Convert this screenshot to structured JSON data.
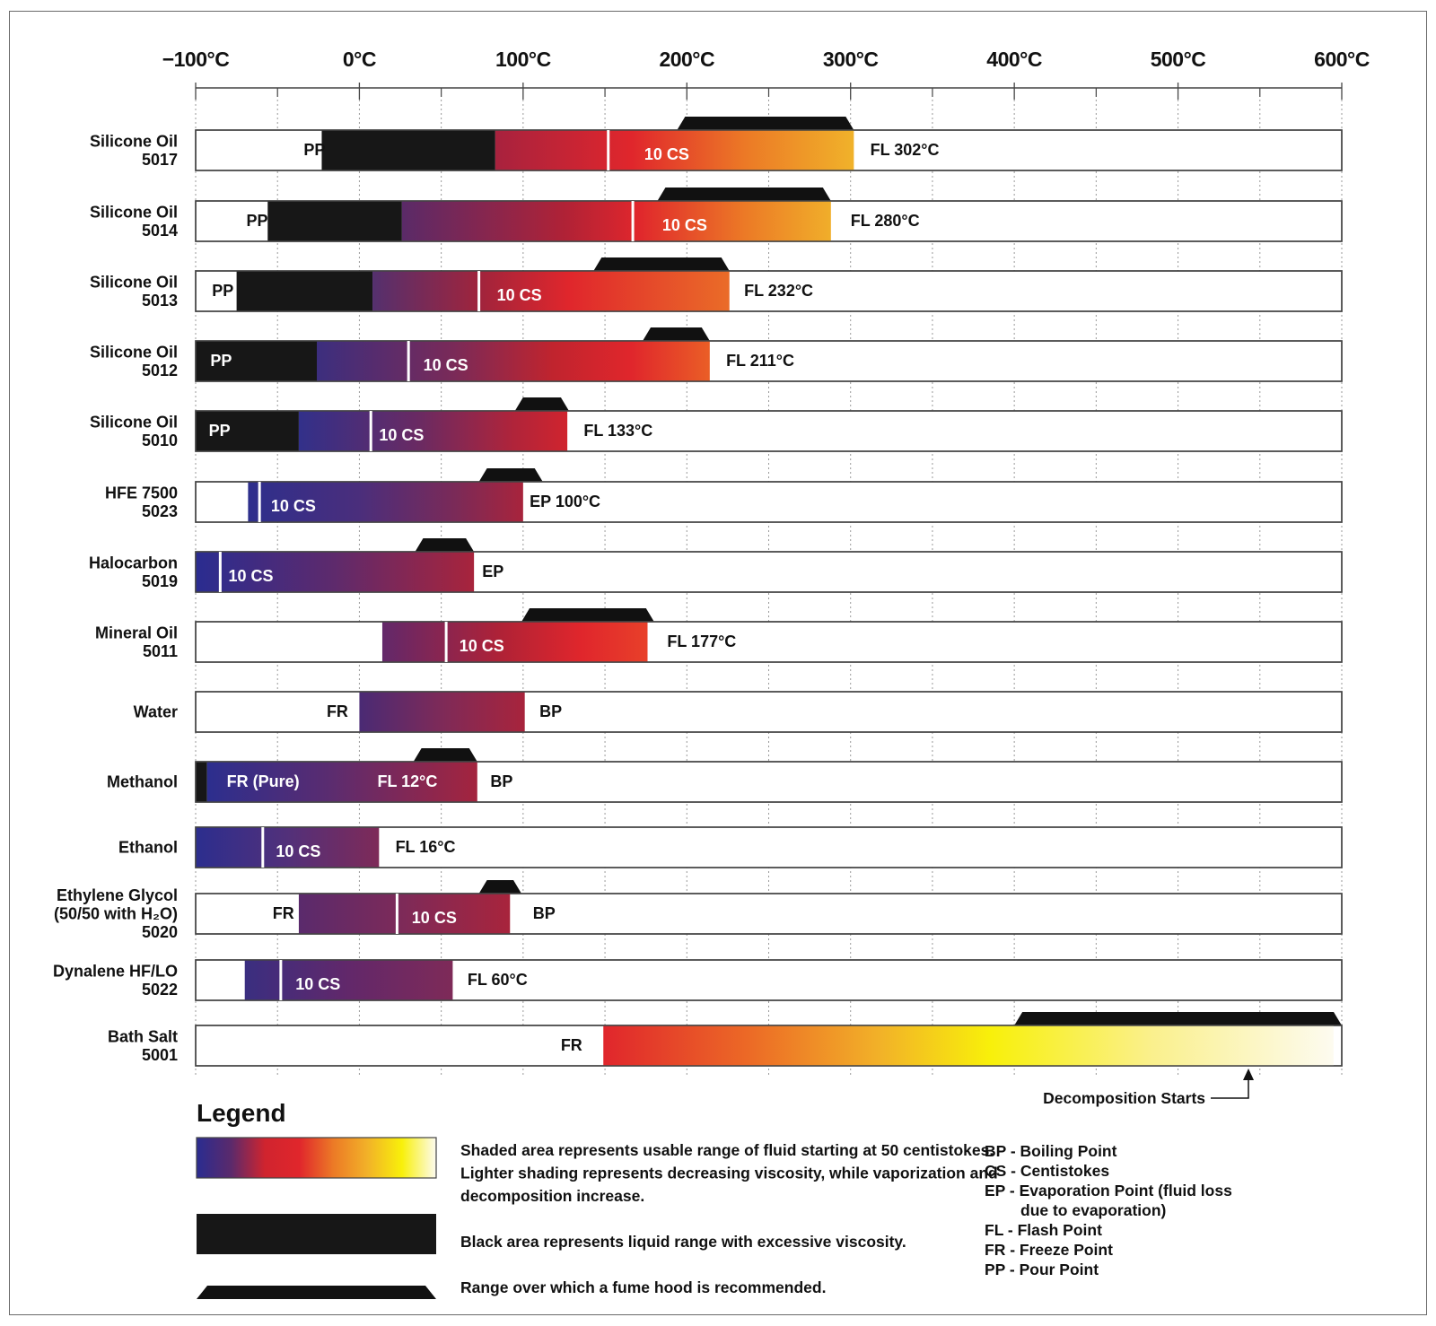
{
  "chart_data": {
    "type": "range-bar",
    "title": "",
    "xlabel": "",
    "ylabel": "",
    "xlim": [
      -100,
      600
    ],
    "x_ticks": [
      -100,
      0,
      100,
      200,
      300,
      400,
      500,
      600
    ],
    "x_tick_labels": [
      "−100°C",
      "0°C",
      "100°C",
      "200°C",
      "300°C",
      "400°C",
      "500°C",
      "600°C"
    ],
    "grid": true,
    "fluids": [
      {
        "name": "Silicone Oil 5017",
        "label_lines": [
          "Silicone Oil",
          "5017"
        ],
        "black_range": [
          -23,
          83
        ],
        "usable_range": [
          83,
          302
        ],
        "gradient": [
          [
            0,
            "#a8223e"
          ],
          [
            0.38,
            "#e0262c"
          ],
          [
            0.7,
            "#ec7a26"
          ],
          [
            1,
            "#f0b22a"
          ]
        ],
        "cs10_at": 152,
        "hood_range": [
          194,
          302
        ],
        "labels": [
          {
            "text": "PP",
            "at": -34,
            "color": "#111"
          },
          {
            "text": "10 CS",
            "at": 174,
            "color": "#fff"
          },
          {
            "text": "FL 302°C",
            "at": 312,
            "color": "#111"
          }
        ]
      },
      {
        "name": "Silicone Oil 5014",
        "label_lines": [
          "Silicone Oil",
          "5014"
        ],
        "black_range": [
          -56,
          26
        ],
        "usable_range": [
          26,
          288
        ],
        "gradient": [
          [
            0,
            "#5a2a68"
          ],
          [
            0.38,
            "#b02236"
          ],
          [
            0.55,
            "#e0262c"
          ],
          [
            0.8,
            "#ec7a26"
          ],
          [
            1,
            "#f0ae2a"
          ]
        ],
        "cs10_at": 167,
        "hood_range": [
          182,
          288
        ],
        "labels": [
          {
            "text": "PP",
            "at": -69,
            "color": "#111"
          },
          {
            "text": "10 CS",
            "at": 185,
            "color": "#fff"
          },
          {
            "text": "FL 280°C",
            "at": 300,
            "color": "#111"
          }
        ]
      },
      {
        "name": "Silicone Oil 5013",
        "label_lines": [
          "Silicone Oil",
          "5013"
        ],
        "black_range": [
          -75,
          8
        ],
        "usable_range": [
          8,
          226
        ],
        "gradient": [
          [
            0,
            "#54306e"
          ],
          [
            0.3,
            "#a0243c"
          ],
          [
            0.55,
            "#e0262c"
          ],
          [
            1,
            "#ea6c28"
          ]
        ],
        "cs10_at": 73,
        "hood_range": [
          143,
          226
        ],
        "labels": [
          {
            "text": "PP",
            "at": -90,
            "color": "#111"
          },
          {
            "text": "10 CS",
            "at": 84,
            "color": "#fff"
          },
          {
            "text": "FL 232°C",
            "at": 235,
            "color": "#111"
          }
        ]
      },
      {
        "name": "Silicone Oil 5012",
        "label_lines": [
          "Silicone Oil",
          "5012"
        ],
        "black_range": [
          -100,
          -26
        ],
        "usable_range": [
          -26,
          214
        ],
        "gradient": [
          [
            0,
            "#3c2e7e"
          ],
          [
            0.35,
            "#7a2a58"
          ],
          [
            0.6,
            "#c0242e"
          ],
          [
            0.8,
            "#e0262c"
          ],
          [
            1,
            "#ea5e26"
          ]
        ],
        "cs10_at": 30,
        "hood_range": [
          173,
          214
        ],
        "labels": [
          {
            "text": "PP",
            "at": -91,
            "color": "#fff"
          },
          {
            "text": "10 CS",
            "at": 39,
            "color": "#fff"
          },
          {
            "text": "FL 211°C",
            "at": 224,
            "color": "#111"
          }
        ]
      },
      {
        "name": "Silicone Oil 5010",
        "label_lines": [
          "Silicone Oil",
          "5010"
        ],
        "black_range": [
          -100,
          -37
        ],
        "usable_range": [
          -37,
          127
        ],
        "gradient": [
          [
            0,
            "#32308a"
          ],
          [
            0.45,
            "#6a2a62"
          ],
          [
            0.8,
            "#b0243a"
          ],
          [
            1,
            "#d0242e"
          ]
        ],
        "cs10_at": 7,
        "hood_range": [
          95,
          128
        ],
        "labels": [
          {
            "text": "PP",
            "at": -92,
            "color": "#fff"
          },
          {
            "text": "10 CS",
            "at": 12,
            "color": "#fff"
          },
          {
            "text": "FL 133°C",
            "at": 137,
            "color": "#111"
          }
        ]
      },
      {
        "name": "HFE 7500 5023",
        "label_lines": [
          "HFE 7500",
          "5023"
        ],
        "black_range": null,
        "usable_range": [
          -68,
          100
        ],
        "gradient": [
          [
            0,
            "#2e2f8c"
          ],
          [
            0.4,
            "#4a2e7c"
          ],
          [
            0.75,
            "#7a2a58"
          ],
          [
            1,
            "#a8243c"
          ]
        ],
        "cs10_at": -61,
        "hood_range": [
          73,
          112
        ],
        "labels": [
          {
            "text": "10 CS",
            "at": -54,
            "color": "#fff"
          },
          {
            "text": "EP 100°C",
            "at": 104,
            "color": "#111"
          }
        ]
      },
      {
        "name": "Halocarbon 5019",
        "label_lines": [
          "Halocarbon",
          "5019"
        ],
        "black_range": null,
        "usable_range": [
          -100,
          70
        ],
        "gradient": [
          [
            0,
            "#2a2c90"
          ],
          [
            0.5,
            "#5e2a6c"
          ],
          [
            1,
            "#a8243c"
          ]
        ],
        "cs10_at": -85,
        "hood_range": [
          34,
          70
        ],
        "labels": [
          {
            "text": "10 CS",
            "at": -80,
            "color": "#fff"
          },
          {
            "text": "EP",
            "at": 75,
            "color": "#111"
          }
        ]
      },
      {
        "name": "Mineral Oil 5011",
        "label_lines": [
          "Mineral Oil",
          "5011"
        ],
        "black_range": null,
        "usable_range": [
          14,
          176
        ],
        "gradient": [
          [
            0,
            "#62286a"
          ],
          [
            0.45,
            "#b02236"
          ],
          [
            0.75,
            "#e0262c"
          ],
          [
            1,
            "#e8402a"
          ]
        ],
        "cs10_at": 53,
        "hood_range": [
          99,
          180
        ],
        "labels": [
          {
            "text": "10 CS",
            "at": 61,
            "color": "#fff"
          },
          {
            "text": "FL 177°C",
            "at": 188,
            "color": "#111"
          }
        ]
      },
      {
        "name": "Water",
        "label_lines": [
          "Water"
        ],
        "black_range": null,
        "usable_range": [
          0,
          101
        ],
        "gradient": [
          [
            0,
            "#4a2a74"
          ],
          [
            0.5,
            "#7e2a58"
          ],
          [
            1,
            "#a8243c"
          ]
        ],
        "cs10_at": null,
        "hood_range": null,
        "labels": [
          {
            "text": "FR",
            "at": -20,
            "color": "#111"
          },
          {
            "text": "BP",
            "at": 110,
            "color": "#111"
          }
        ]
      },
      {
        "name": "Methanol",
        "label_lines": [
          "Methanol"
        ],
        "black_range": [
          -100,
          -93
        ],
        "usable_range": [
          -93,
          72
        ],
        "gradient": [
          [
            0,
            "#2c2e8e"
          ],
          [
            0.45,
            "#5a2c70"
          ],
          [
            1,
            "#a4243e"
          ]
        ],
        "cs10_at": null,
        "hood_range": [
          33,
          72
        ],
        "labels": [
          {
            "text": "FR (Pure)",
            "at": -81,
            "color": "#fff"
          },
          {
            "text": "FL 12°C",
            "at": 11,
            "color": "#fff"
          },
          {
            "text": "BP",
            "at": 80,
            "color": "#111"
          }
        ]
      },
      {
        "name": "Ethanol",
        "label_lines": [
          "Ethanol"
        ],
        "black_range": null,
        "usable_range": [
          -100,
          12
        ],
        "gradient": [
          [
            0,
            "#2c2e8e"
          ],
          [
            0.5,
            "#52307a"
          ],
          [
            1,
            "#7e2a58"
          ]
        ],
        "cs10_at": -59,
        "hood_range": null,
        "labels": [
          {
            "text": "10 CS",
            "at": -51,
            "color": "#fff"
          },
          {
            "text": "FL 16°C",
            "at": 22,
            "color": "#111"
          }
        ]
      },
      {
        "name": "Ethylene Glycol (50/50 with H2O) 5020",
        "label_lines": [
          "Ethylene Glycol",
          "(50/50 with H₂O)",
          "5020"
        ],
        "black_range": null,
        "usable_range": [
          -37,
          92
        ],
        "gradient": [
          [
            0,
            "#5a2a6c"
          ],
          [
            0.5,
            "#7e2a58"
          ],
          [
            1,
            "#a8243c"
          ]
        ],
        "cs10_at": 23,
        "hood_range": [
          73,
          99
        ],
        "labels": [
          {
            "text": "FR",
            "at": -53,
            "color": "#111"
          },
          {
            "text": "10 CS",
            "at": 32,
            "color": "#fff"
          },
          {
            "text": "BP",
            "at": 106,
            "color": "#111"
          }
        ]
      },
      {
        "name": "Dynalene HF/LO 5022",
        "label_lines": [
          "Dynalene HF/LO",
          "5022"
        ],
        "black_range": null,
        "usable_range": [
          -70,
          57
        ],
        "gradient": [
          [
            0,
            "#3a2e80"
          ],
          [
            0.5,
            "#62286a"
          ],
          [
            1,
            "#7e2a58"
          ]
        ],
        "cs10_at": -48,
        "hood_range": null,
        "labels": [
          {
            "text": "10 CS",
            "at": -39,
            "color": "#fff"
          },
          {
            "text": "FL 60°C",
            "at": 66,
            "color": "#111"
          }
        ]
      },
      {
        "name": "Bath Salt 5001",
        "label_lines": [
          "Bath Salt",
          "5001"
        ],
        "black_range": null,
        "usable_range": [
          149,
          595
        ],
        "gradient": [
          [
            0,
            "#e0262c"
          ],
          [
            0.2,
            "#ec6a26"
          ],
          [
            0.38,
            "#f2b228"
          ],
          [
            0.53,
            "#f8f00a"
          ],
          [
            0.75,
            "#faf08c"
          ],
          [
            1,
            "#fdfbf0"
          ]
        ],
        "cs10_at": null,
        "hood_range": [
          400,
          600
        ],
        "labels": [
          {
            "text": "FR",
            "at": 123,
            "color": "#111"
          }
        ]
      }
    ],
    "annotation": {
      "text": "Decomposition Starts",
      "at": 543
    }
  },
  "legend": {
    "title": "Legend",
    "gradient_text": [
      "Shaded area represents usable range of fluid starting at 50 centistokes.",
      "Lighter shading represents decreasing viscosity, while vaporization and",
      "decomposition increase."
    ],
    "black_text": "Black  area represents liquid range with excessive viscosity.",
    "hood_text": "Range over which a fume hood is recommended.",
    "abbreviations": [
      "BP - Boiling Point",
      "CS - Centistokes",
      "EP - Evaporation Point (fluid loss",
      "due to evaporation)",
      "FL - Flash Point",
      "FR - Freeze Point",
      "PP - Pour Point"
    ],
    "gradient_colors": [
      "#2a2c90",
      "#5a2a6c",
      "#d0242e",
      "#e0262c",
      "#ec7a26",
      "#f2b228",
      "#f8f00a",
      "#fdfbf0"
    ]
  }
}
